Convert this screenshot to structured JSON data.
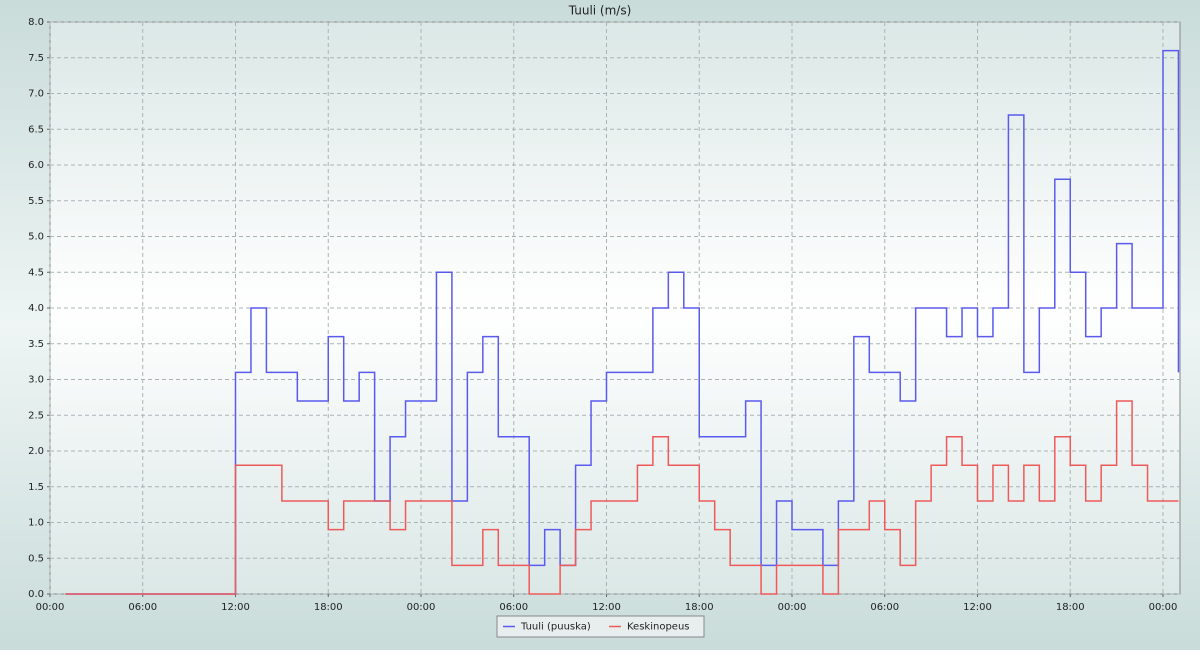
{
  "chart_data": {
    "type": "line",
    "title": "Tuuli (m/s)",
    "drawstyle": "steps-post",
    "grid": true,
    "legend": "bottom",
    "xlim": [
      0,
      73.1
    ],
    "xticks": [
      {
        "value": 0,
        "label": "00:00"
      },
      {
        "value": 6,
        "label": "06:00"
      },
      {
        "value": 12,
        "label": "12:00"
      },
      {
        "value": 18,
        "label": "18:00"
      },
      {
        "value": 24,
        "label": "00:00"
      },
      {
        "value": 30,
        "label": "06:00"
      },
      {
        "value": 36,
        "label": "12:00"
      },
      {
        "value": 42,
        "label": "18:00"
      },
      {
        "value": 48,
        "label": "00:00"
      },
      {
        "value": 54,
        "label": "06:00"
      },
      {
        "value": 60,
        "label": "12:00"
      },
      {
        "value": 66,
        "label": "18:00"
      },
      {
        "value": 72,
        "label": "00:00"
      }
    ],
    "ylim": [
      0,
      8
    ],
    "yticks": [
      {
        "value": 0,
        "label": "0.0"
      },
      {
        "value": 0.5,
        "label": "0.5"
      },
      {
        "value": 1,
        "label": "1.0"
      },
      {
        "value": 1.5,
        "label": "1.5"
      },
      {
        "value": 2,
        "label": "2.0"
      },
      {
        "value": 2.5,
        "label": "2.5"
      },
      {
        "value": 3,
        "label": "3.0"
      },
      {
        "value": 3.5,
        "label": "3.5"
      },
      {
        "value": 4,
        "label": "4.0"
      },
      {
        "value": 4.5,
        "label": "4.5"
      },
      {
        "value": 5,
        "label": "5.0"
      },
      {
        "value": 5.5,
        "label": "5.5"
      },
      {
        "value": 6,
        "label": "6.0"
      },
      {
        "value": 6.5,
        "label": "6.5"
      },
      {
        "value": 7,
        "label": "7.0"
      },
      {
        "value": 7.5,
        "label": "7.5"
      },
      {
        "value": 8,
        "label": "8.0"
      }
    ],
    "x": [
      1,
      2,
      3,
      4,
      5,
      6,
      7,
      8,
      9,
      10,
      11,
      12,
      13,
      14,
      15,
      16,
      17,
      18,
      19,
      20,
      21,
      22,
      23,
      24,
      25,
      26,
      27,
      28,
      29,
      30,
      31,
      32,
      33,
      34,
      35,
      36,
      37,
      38,
      39,
      40,
      41,
      42,
      43,
      44,
      45,
      46,
      47,
      48,
      49,
      50,
      51,
      52,
      53,
      54,
      55,
      56,
      57,
      58,
      59,
      60,
      61,
      62,
      63,
      64,
      65,
      66,
      67,
      68,
      69,
      70,
      71,
      72,
      73
    ],
    "series": [
      {
        "name": "Tuuli (puuska)",
        "color": "#5a5aee",
        "values": [
          0,
          0,
          0,
          0,
          0,
          0,
          0,
          0,
          0,
          0,
          0,
          3.1,
          4.0,
          3.1,
          3.1,
          2.7,
          2.7,
          3.6,
          2.7,
          3.1,
          1.3,
          2.2,
          2.7,
          2.7,
          4.5,
          1.3,
          3.1,
          3.6,
          2.2,
          2.2,
          0.4,
          0.9,
          0.4,
          1.8,
          2.7,
          3.1,
          3.1,
          3.1,
          4.0,
          4.5,
          4.0,
          2.2,
          2.2,
          2.2,
          2.7,
          0.4,
          1.3,
          0.9,
          0.9,
          0.4,
          1.3,
          3.6,
          3.1,
          3.1,
          2.7,
          4.0,
          4.0,
          3.6,
          4.0,
          3.6,
          4.0,
          6.7,
          3.1,
          4.0,
          5.8,
          4.5,
          3.6,
          4.0,
          4.9,
          4.0,
          4.0,
          7.6,
          3.1
        ]
      },
      {
        "name": "Keskinopeus",
        "color": "#ee5a5a",
        "values": [
          0,
          0,
          0,
          0,
          0,
          0,
          0,
          0,
          0,
          0,
          0,
          1.8,
          1.8,
          1.8,
          1.3,
          1.3,
          1.3,
          0.9,
          1.3,
          1.3,
          1.3,
          0.9,
          1.3,
          1.3,
          1.3,
          0.4,
          0.4,
          0.9,
          0.4,
          0.4,
          0,
          0,
          0.4,
          0.9,
          1.3,
          1.3,
          1.3,
          1.8,
          2.2,
          1.8,
          1.8,
          1.3,
          0.9,
          0.4,
          0.4,
          0,
          0.4,
          0.4,
          0.4,
          0,
          0.9,
          0.9,
          1.3,
          0.9,
          0.4,
          1.3,
          1.8,
          2.2,
          1.8,
          1.3,
          1.8,
          1.3,
          1.8,
          1.3,
          2.2,
          1.8,
          1.3,
          1.8,
          2.7,
          1.8,
          1.3,
          1.3,
          1.3
        ]
      }
    ]
  }
}
